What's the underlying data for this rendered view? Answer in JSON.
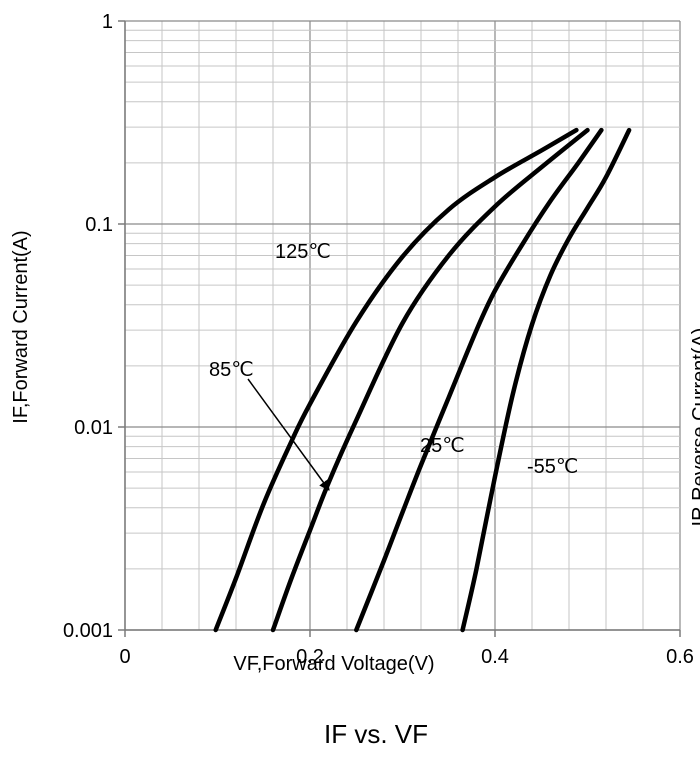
{
  "caption": "IF vs. VF",
  "right_axis_label_partial": "IR,Reverse Current(A)",
  "chart_data": {
    "type": "line",
    "title": "",
    "xlabel": "VF,Forward Voltage(V)",
    "ylabel": "IF,Forward Current(A)",
    "xlim": [
      0,
      0.6
    ],
    "ylim": [
      0.001,
      1
    ],
    "yscale": "log",
    "grid": true,
    "x_ticks": [
      0,
      0.2,
      0.4,
      0.6
    ],
    "x_tick_labels": [
      "0",
      "0.2",
      "0.4",
      "0.6"
    ],
    "y_ticks": [
      0.001,
      0.01,
      0.1,
      1
    ],
    "y_tick_labels": [
      "0.001",
      "0.01",
      "0.1",
      "1"
    ],
    "series": [
      {
        "name": "125℃",
        "x": [
          0.098,
          0.12,
          0.15,
          0.18,
          0.2,
          0.25,
          0.3,
          0.35,
          0.4,
          0.45,
          0.488
        ],
        "y": [
          0.001,
          0.0018,
          0.0042,
          0.0085,
          0.013,
          0.033,
          0.069,
          0.118,
          0.17,
          0.23,
          0.29
        ]
      },
      {
        "name": "85℃",
        "x": [
          0.16,
          0.18,
          0.2,
          0.22,
          0.25,
          0.3,
          0.35,
          0.4,
          0.45,
          0.5
        ],
        "y": [
          0.001,
          0.0018,
          0.0031,
          0.0053,
          0.0108,
          0.0325,
          0.07,
          0.122,
          0.19,
          0.29
        ]
      },
      {
        "name": "25℃",
        "x": [
          0.25,
          0.28,
          0.3,
          0.32,
          0.35,
          0.38,
          0.4,
          0.43,
          0.46,
          0.49,
          0.515
        ],
        "y": [
          0.001,
          0.0022,
          0.0038,
          0.0065,
          0.014,
          0.03,
          0.047,
          0.08,
          0.13,
          0.2,
          0.29
        ]
      },
      {
        "name": "-55℃",
        "x": [
          0.365,
          0.38,
          0.4,
          0.42,
          0.44,
          0.46,
          0.48,
          0.5,
          0.52,
          0.545
        ],
        "y": [
          0.001,
          0.002,
          0.0057,
          0.015,
          0.032,
          0.056,
          0.085,
          0.12,
          0.17,
          0.29
        ]
      }
    ],
    "annotations": [
      {
        "text": "125℃",
        "series": "125℃"
      },
      {
        "text": "85℃",
        "series": "85℃",
        "arrow": true
      },
      {
        "text": "25℃",
        "series": "25℃"
      },
      {
        "text": "-55℃",
        "series": "-55℃"
      }
    ]
  }
}
